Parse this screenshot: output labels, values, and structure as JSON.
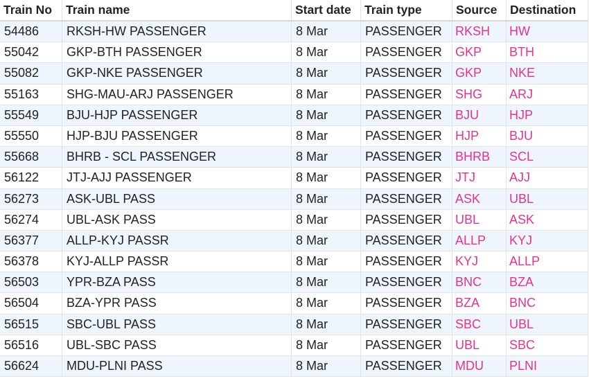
{
  "table": {
    "header": [
      "Train No",
      "Train name",
      "Start date",
      "Train type",
      "Source",
      "Destination"
    ],
    "rows": [
      [
        "54486",
        "RKSH-HW PASSENGER",
        "8 Mar",
        "PASSENGER",
        "RKSH",
        "HW"
      ],
      [
        "55042",
        "GKP-BTH PASSENGER",
        "8 Mar",
        "PASSENGER",
        "GKP",
        "BTH"
      ],
      [
        "55082",
        "GKP-NKE PASSENGER",
        "8 Mar",
        "PASSENGER",
        "GKP",
        "NKE"
      ],
      [
        "55163",
        "SHG-MAU-ARJ PASSENGER",
        "8 Mar",
        "PASSENGER",
        "SHG",
        "ARJ"
      ],
      [
        "55549",
        "BJU-HJP PASSENGER",
        "8 Mar",
        "PASSENGER",
        "BJU",
        "HJP"
      ],
      [
        "55550",
        "HJP-BJU PASSENGER",
        "8 Mar",
        "PASSENGER",
        "HJP",
        "BJU"
      ],
      [
        "55668",
        "BHRB - SCL PASSENGER",
        "8 Mar",
        "PASSENGER",
        "BHRB",
        "SCL"
      ],
      [
        "56122",
        "JTJ-AJJ PASSENGER",
        "8 Mar",
        "PASSENGER",
        "JTJ",
        "AJJ"
      ],
      [
        "56273",
        "ASK-UBL PASS",
        "8 Mar",
        "PASSENGER",
        "ASK",
        "UBL"
      ],
      [
        "56274",
        "UBL-ASK PASS",
        "8 Mar",
        "PASSENGER",
        "UBL",
        "ASK"
      ],
      [
        "56377",
        "ALLP-KYJ PASSR",
        "8 Mar",
        "PASSENGER",
        "ALLP",
        "KYJ"
      ],
      [
        "56378",
        "KYJ-ALLP PASSR",
        "8 Mar",
        "PASSENGER",
        "KYJ",
        "ALLP"
      ],
      [
        "56503",
        "YPR-BZA PASS",
        "8 Mar",
        "PASSENGER",
        "BNC",
        "BZA"
      ],
      [
        "56504",
        "BZA-YPR PASS",
        "8 Mar",
        "PASSENGER",
        "BZA",
        "BNC"
      ],
      [
        "56515",
        "SBC-UBL PASS",
        "8 Mar",
        "PASSENGER",
        "SBC",
        "UBL"
      ],
      [
        "56516",
        "UBL-SBC PASS",
        "8 Mar",
        "PASSENGER",
        "UBL",
        "SBC"
      ],
      [
        "56624",
        "MDU-PLNI PASS",
        "8 Mar",
        "PASSENGER",
        "MDU",
        "PLNI"
      ]
    ]
  }
}
